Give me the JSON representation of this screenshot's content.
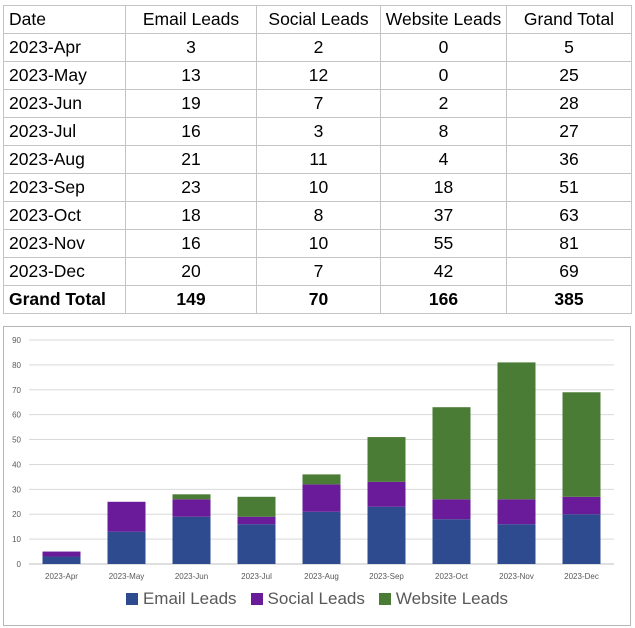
{
  "table": {
    "headers": [
      "Date",
      "Email Leads",
      "Social Leads",
      "Website Leads",
      "Grand Total"
    ],
    "rows": [
      [
        "2023-Apr",
        "3",
        "2",
        "0",
        "5"
      ],
      [
        "2023-May",
        "13",
        "12",
        "0",
        "25"
      ],
      [
        "2023-Jun",
        "19",
        "7",
        "2",
        "28"
      ],
      [
        "2023-Jul",
        "16",
        "3",
        "8",
        "27"
      ],
      [
        "2023-Aug",
        "21",
        "11",
        "4",
        "36"
      ],
      [
        "2023-Sep",
        "23",
        "10",
        "18",
        "51"
      ],
      [
        "2023-Oct",
        "18",
        "8",
        "37",
        "63"
      ],
      [
        "2023-Nov",
        "16",
        "10",
        "55",
        "81"
      ],
      [
        "2023-Dec",
        "20",
        "7",
        "42",
        "69"
      ]
    ],
    "total_row": [
      "Grand Total",
      "149",
      "70",
      "166",
      "385"
    ]
  },
  "chart_data": {
    "type": "bar",
    "stacked": true,
    "categories": [
      "2023-Apr",
      "2023-May",
      "2023-Jun",
      "2023-Jul",
      "2023-Aug",
      "2023-Sep",
      "2023-Oct",
      "2023-Nov",
      "2023-Dec"
    ],
    "series": [
      {
        "name": "Email Leads",
        "color": "#2f4b8f",
        "values": [
          3,
          13,
          19,
          16,
          21,
          23,
          18,
          16,
          20
        ]
      },
      {
        "name": "Social Leads",
        "color": "#6a1b9a",
        "values": [
          2,
          12,
          7,
          3,
          11,
          10,
          8,
          10,
          7
        ]
      },
      {
        "name": "Website Leads",
        "color": "#4a7c35",
        "values": [
          0,
          0,
          2,
          8,
          4,
          18,
          37,
          55,
          42
        ]
      }
    ],
    "ylim": [
      0,
      90
    ],
    "yticks": [
      0,
      10,
      20,
      30,
      40,
      50,
      60,
      70,
      80,
      90
    ],
    "grid": true,
    "legend": "bottom"
  }
}
